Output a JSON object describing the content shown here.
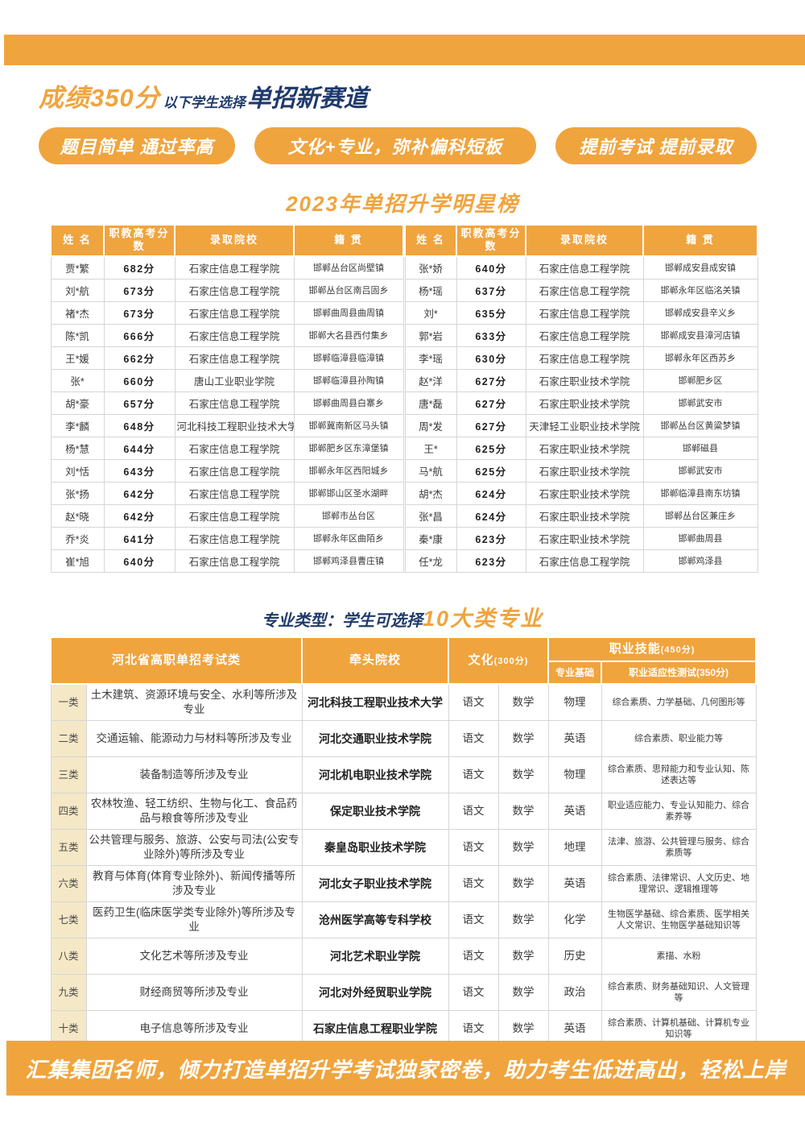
{
  "colors": {
    "accent_orange": "#F0A43E",
    "dark_blue": "#1F3A6B",
    "category_beige": "#F5E8C6"
  },
  "header": {
    "title_score": "成绩350分",
    "title_mid": "以下学生选择",
    "title_track": "单招新赛道",
    "pills": [
      "题目简单 通过率高",
      "文化+专业，弥补偏科短板",
      "提前考试 提前录取"
    ]
  },
  "star_list": {
    "title": "2023年单招升学明星榜",
    "columns": [
      "姓 名",
      "职教高考分数",
      "录取院校",
      "籍 贯"
    ],
    "left_rows": [
      [
        "贾*繁",
        "682分",
        "石家庄信息工程学院",
        "邯郸丛台区尚壁镇"
      ],
      [
        "刘*航",
        "673分",
        "石家庄信息工程学院",
        "邯郸丛台区南吕固乡"
      ],
      [
        "褚*杰",
        "673分",
        "石家庄信息工程学院",
        "邯郸曲周县曲周镇"
      ],
      [
        "陈*凯",
        "666分",
        "石家庄信息工程学院",
        "邯郸大名县西付集乡"
      ],
      [
        "王*媛",
        "662分",
        "石家庄信息工程学院",
        "邯郸临漳县临漳镇"
      ],
      [
        "张*",
        "660分",
        "唐山工业职业学院",
        "邯郸临漳县孙陶镇"
      ],
      [
        "胡*豪",
        "657分",
        "石家庄信息工程学院",
        "邯郸曲周县白寨乡"
      ],
      [
        "李*麟",
        "648分",
        "河北科技工程职业技术大学",
        "邯郸冀南新区马头镇"
      ],
      [
        "杨*慧",
        "644分",
        "石家庄信息工程学院",
        "邯郸肥乡区东漳堡镇"
      ],
      [
        "刘*恬",
        "643分",
        "石家庄信息工程学院",
        "邯郸永年区西阳城乡"
      ],
      [
        "张*扬",
        "642分",
        "石家庄信息工程学院",
        "邯郸邯山区圣水湖畔"
      ],
      [
        "赵*晓",
        "642分",
        "石家庄信息工程学院",
        "邯郸市丛台区"
      ],
      [
        "乔*炎",
        "641分",
        "石家庄信息工程学院",
        "邯郸永年区曲陌乡"
      ],
      [
        "崔*旭",
        "640分",
        "石家庄信息工程学院",
        "邯郸鸡泽县曹庄镇"
      ]
    ],
    "right_rows": [
      [
        "张*娇",
        "640分",
        "石家庄信息工程学院",
        "邯郸成安县成安镇"
      ],
      [
        "杨*瑶",
        "637分",
        "石家庄信息工程学院",
        "邯郸永年区临洺关镇"
      ],
      [
        "刘*",
        "635分",
        "石家庄信息工程学院",
        "邯郸成安县辛义乡"
      ],
      [
        "郭*岩",
        "633分",
        "石家庄信息工程学院",
        "邯郸成安县漳河店镇"
      ],
      [
        "李*瑶",
        "630分",
        "石家庄信息工程学院",
        "邯郸永年区西苏乡"
      ],
      [
        "赵*洋",
        "627分",
        "石家庄职业技术学院",
        "邯郸肥乡区"
      ],
      [
        "唐*磊",
        "627分",
        "石家庄职业技术学院",
        "邯郸武安市"
      ],
      [
        "周*发",
        "627分",
        "天津轻工业职业技术学院",
        "邯郸丛台区黄粱梦镇"
      ],
      [
        "王*",
        "625分",
        "石家庄职业技术学院",
        "邯郸磁县"
      ],
      [
        "马*航",
        "625分",
        "石家庄职业技术学院",
        "邯郸武安市"
      ],
      [
        "胡*杰",
        "624分",
        "石家庄职业技术学院",
        "邯郸临漳县南东坊镇"
      ],
      [
        "张*昌",
        "624分",
        "石家庄职业技术学院",
        "邯郸丛台区兼庄乡"
      ],
      [
        "秦*康",
        "623分",
        "石家庄职业技术学院",
        "邯郸曲周县"
      ],
      [
        "任*龙",
        "623分",
        "石家庄信息工程学院",
        "邯郸鸡泽县"
      ]
    ]
  },
  "majors": {
    "title_blue": "专业类型：学生可选择",
    "title_orange": "10大类专业",
    "header": {
      "col_exam_class": "河北省高职单招考试类",
      "col_lead_school": "牵头院校",
      "col_culture": "文化",
      "col_culture_score": "(300分)",
      "col_skill": "职业技能",
      "col_skill_score": "(450分)",
      "col_basis": "专业基础",
      "col_aptitude": "职业适应性测试(350分)"
    },
    "rows": [
      {
        "cat": "一类",
        "desc": "土木建筑、资源环境与安全、水利等所涉及专业",
        "school": "河北科技工程职业技术大学",
        "chinese": "语文",
        "math": "数学",
        "basis": "物理",
        "aptitude": "综合素质、力学基础、几何图形等"
      },
      {
        "cat": "二类",
        "desc": "交通运输、能源动力与材料等所涉及专业",
        "school": "河北交通职业技术学院",
        "chinese": "语文",
        "math": "数学",
        "basis": "英语",
        "aptitude": "综合素质、职业能力等"
      },
      {
        "cat": "三类",
        "desc": "装备制造等所涉及专业",
        "school": "河北机电职业技术学院",
        "chinese": "语文",
        "math": "数学",
        "basis": "物理",
        "aptitude": "综合素质、思辩能力和专业认知、陈述表达等"
      },
      {
        "cat": "四类",
        "desc": "农林牧渔、轻工纺织、生物与化工、食品药品与粮食等所涉及专业",
        "school": "保定职业技术学院",
        "chinese": "语文",
        "math": "数学",
        "basis": "英语",
        "aptitude": "职业适应能力、专业认知能力、综合素养等"
      },
      {
        "cat": "五类",
        "desc": "公共管理与服务、旅游、公安与司法(公安专业除外)等所涉及专业",
        "school": "秦皇岛职业技术学院",
        "chinese": "语文",
        "math": "数学",
        "basis": "地理",
        "aptitude": "法津、旅游、公共管理与服务、综合素质等"
      },
      {
        "cat": "六类",
        "desc": "教育与体育(体育专业除外)、新闻传播等所涉及专业",
        "school": "河北女子职业技术学院",
        "chinese": "语文",
        "math": "数学",
        "basis": "英语",
        "aptitude": "综合素质、法律常识、人文历史、地理常识、逻辑推理等"
      },
      {
        "cat": "七类",
        "desc": "医药卫生(临床医学类专业除外)等所涉及专业",
        "school": "沧州医学高等专科学校",
        "chinese": "语文",
        "math": "数学",
        "basis": "化学",
        "aptitude": "生物医学基础、综合素质、医学相关人文常识、生物医学基础知识等"
      },
      {
        "cat": "八类",
        "desc": "文化艺术等所涉及专业",
        "school": "河北艺术职业学院",
        "chinese": "语文",
        "math": "数学",
        "basis": "历史",
        "aptitude": "素描、水粉"
      },
      {
        "cat": "九类",
        "desc": "财经商贸等所涉及专业",
        "school": "河北对外经贸职业学院",
        "chinese": "语文",
        "math": "数学",
        "basis": "政治",
        "aptitude": "综合素质、财务基础知识、人文管理等"
      },
      {
        "cat": "十类",
        "desc": "电子信息等所涉及专业",
        "school": "石家庄信息工程职业学院",
        "chinese": "语文",
        "math": "数学",
        "basis": "英语",
        "aptitude": "综合素质、计算机基础、计算机专业知识等"
      }
    ]
  },
  "footer": {
    "banner": "汇集集团名师，倾力打造单招升学考试独家密卷，助力考生低进高出，轻松上岸"
  }
}
